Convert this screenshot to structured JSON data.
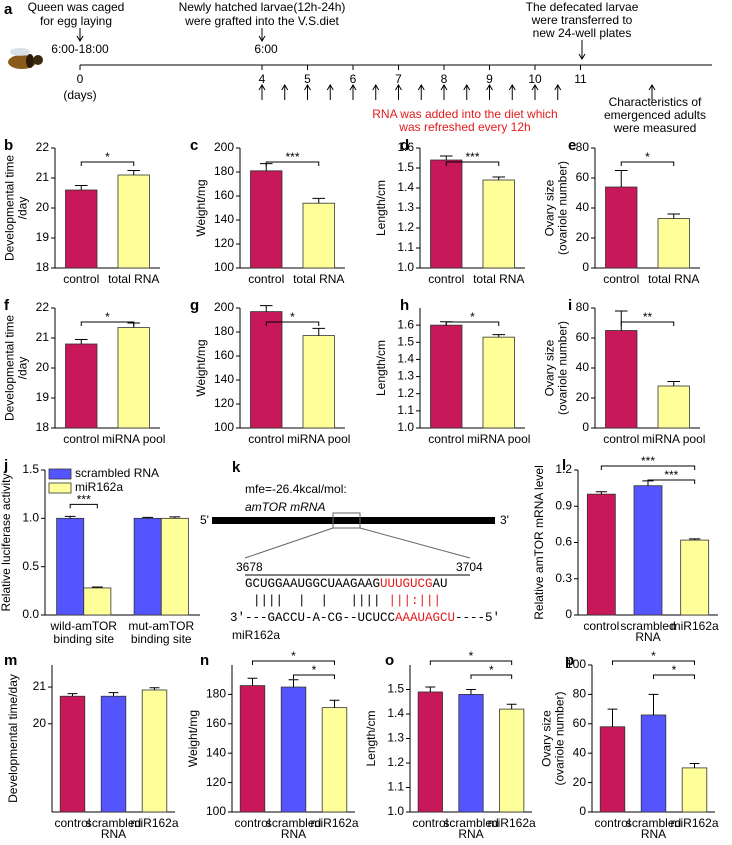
{
  "timeline": {
    "label": "a",
    "days": [
      0,
      4,
      5,
      6,
      7,
      8,
      9,
      10,
      11
    ],
    "unit": "(days)",
    "events": [
      {
        "lines": [
          "Queen was caged",
          "for egg laying"
        ],
        "time": "6:00-18:00"
      },
      {
        "lines": [
          "Newly hatched larvae(12h-24h)",
          "were grafted into the V.S.diet"
        ],
        "time": "6:00"
      },
      {
        "lines": [
          "The defecated larvae",
          "were transferred to",
          "new 24-well plates"
        ]
      }
    ],
    "rna_note": [
      "RNA was added into the diet which",
      "was refreshed every 12h"
    ],
    "measure_note": [
      "Characteristics of",
      "emergenced adults",
      "were measured"
    ]
  },
  "chart_data": [
    {
      "type": "bar",
      "label": "b",
      "ylabel": [
        "Developmental time",
        "/day"
      ],
      "categories": [
        [
          "control"
        ],
        [
          "total RNA"
        ]
      ],
      "values": [
        20.6,
        21.1
      ],
      "errors": [
        0.15,
        0.15
      ],
      "colors": [
        "#c8185a",
        "#ffff99"
      ],
      "ylim": [
        18,
        22
      ],
      "yticks": [
        18,
        19,
        20,
        21,
        22
      ],
      "annotations": [
        "*"
      ]
    },
    {
      "type": "bar",
      "label": "c",
      "ylabel": [
        "Weight/mg"
      ],
      "categories": [
        [
          "control"
        ],
        [
          "total RNA"
        ]
      ],
      "values": [
        181,
        154
      ],
      "errors": [
        6,
        4
      ],
      "colors": [
        "#c8185a",
        "#ffff99"
      ],
      "ylim": [
        100,
        200
      ],
      "yticks": [
        100,
        120,
        140,
        160,
        180,
        200
      ],
      "annotations": [
        "***"
      ]
    },
    {
      "type": "bar",
      "label": "d",
      "ylabel": [
        "Length/cm"
      ],
      "categories": [
        [
          "control"
        ],
        [
          "total RNA"
        ]
      ],
      "values": [
        1.54,
        1.44
      ],
      "errors": [
        0.02,
        0.015
      ],
      "colors": [
        "#c8185a",
        "#ffff99"
      ],
      "ylim": [
        1.0,
        1.6
      ],
      "yticks": [
        {
          "value": 1,
          "label": "1.0"
        },
        1.1,
        1.2,
        1.3,
        1.4,
        1.5,
        1.6
      ],
      "annotations": [
        "***"
      ]
    },
    {
      "type": "bar",
      "label": "e",
      "ylabel": [
        "Ovary size",
        "(ovariole number)"
      ],
      "categories": [
        [
          "control"
        ],
        [
          "total RNA"
        ]
      ],
      "values": [
        54,
        33
      ],
      "errors": [
        11,
        3
      ],
      "colors": [
        "#c8185a",
        "#ffff99"
      ],
      "ylim": [
        0,
        80
      ],
      "yticks": [
        0,
        20,
        40,
        60,
        80
      ],
      "annotations": [
        "*"
      ]
    },
    {
      "type": "bar",
      "label": "f",
      "ylabel": [
        "Developmental time",
        "/day"
      ],
      "categories": [
        [
          "control"
        ],
        [
          "miRNA pool"
        ]
      ],
      "values": [
        20.8,
        21.35
      ],
      "errors": [
        0.15,
        0.15
      ],
      "colors": [
        "#c8185a",
        "#ffff99"
      ],
      "ylim": [
        18,
        22
      ],
      "yticks": [
        18,
        19,
        20,
        21,
        22
      ],
      "annotations": [
        "*"
      ]
    },
    {
      "type": "bar",
      "label": "g",
      "ylabel": [
        "Weight/mg"
      ],
      "categories": [
        [
          "control"
        ],
        [
          "miRNA pool"
        ]
      ],
      "values": [
        197,
        177
      ],
      "errors": [
        5,
        6
      ],
      "colors": [
        "#c8185a",
        "#ffff99"
      ],
      "ylim": [
        100,
        200
      ],
      "yticks": [
        100,
        120,
        140,
        160,
        180,
        200
      ],
      "annotations": [
        "*"
      ]
    },
    {
      "type": "bar",
      "label": "h",
      "ylabel": [
        "Length/cm"
      ],
      "categories": [
        [
          "control"
        ],
        [
          "miRNA pool"
        ]
      ],
      "values": [
        1.6,
        1.53
      ],
      "errors": [
        0.02,
        0.015
      ],
      "colors": [
        "#c8185a",
        "#ffff99"
      ],
      "ylim": [
        1.0,
        1.7
      ],
      "yticks": [
        {
          "value": 1,
          "label": "1.0"
        },
        1.1,
        1.2,
        1.3,
        1.4,
        1.5,
        1.6
      ],
      "annotations": [
        "*"
      ]
    },
    {
      "type": "bar",
      "label": "i",
      "ylabel": [
        "Ovary size",
        "(ovariole number)"
      ],
      "categories": [
        [
          "control"
        ],
        [
          "miRNA pool"
        ]
      ],
      "values": [
        65,
        28
      ],
      "errors": [
        13,
        3
      ],
      "colors": [
        "#c8185a",
        "#ffff99"
      ],
      "ylim": [
        0,
        80
      ],
      "yticks": [
        0,
        20,
        40,
        60,
        80
      ],
      "annotations": [
        "**"
      ]
    },
    {
      "type": "bar",
      "label": "j",
      "ylabel": [
        "Relative luciferase activity"
      ],
      "categories": [
        [
          "wild-amTOR",
          "binding site"
        ],
        [
          "mut-amTOR",
          "binding site"
        ]
      ],
      "series": [
        {
          "name": "scrambled RNA",
          "color": "#5555ff",
          "values": [
            1.0,
            1.0
          ],
          "errors": [
            0.02,
            0.01
          ]
        },
        {
          "name": "miR162a",
          "color": "#ffff99",
          "values": [
            0.28,
            1.0
          ],
          "errors": [
            0.01,
            0.015
          ]
        }
      ],
      "ylim": [
        0,
        1.5
      ],
      "yticks": [
        {
          "value": 0,
          "label": "0.0"
        },
        0.5,
        {
          "value": 1,
          "label": "1.0"
        },
        1.5
      ],
      "legend": "upper left",
      "annotations": [
        "***"
      ]
    },
    {
      "type": "bar",
      "label": "l",
      "ylabel": [
        "Relative amTOR mRNA level"
      ],
      "categories": [
        [
          "control"
        ],
        [
          "scrambled",
          "RNA"
        ],
        [
          "miR162a"
        ]
      ],
      "values": [
        1.0,
        1.07,
        0.62
      ],
      "errors": [
        0.02,
        0.04,
        0.01
      ],
      "colors": [
        "#c8185a",
        "#5555ff",
        "#ffff99"
      ],
      "ylim": [
        0,
        1.2
      ],
      "yticks": [
        0,
        0.3,
        0.6,
        0.9,
        1.2
      ],
      "annotations": [
        "***",
        "***"
      ]
    },
    {
      "type": "bar",
      "label": "m",
      "ylabel": [
        "Developmental time/day"
      ],
      "categories": [
        [
          "control"
        ],
        [
          "scrambled",
          "RNA"
        ],
        [
          "miR162a"
        ]
      ],
      "values": [
        20.75,
        20.75,
        20.92
      ],
      "errors": [
        0.07,
        0.1,
        0.06
      ],
      "colors": [
        "#c8185a",
        "#5555ff",
        "#ffff99"
      ],
      "ylim": [
        17.6,
        21.6
      ],
      "yticks": [
        20,
        21
      ],
      "annotations": []
    },
    {
      "type": "bar",
      "label": "n",
      "ylabel": [
        "Weight/mg"
      ],
      "categories": [
        [
          "control"
        ],
        [
          "scrambled",
          "RNA"
        ],
        [
          "miR162a"
        ]
      ],
      "values": [
        186,
        185,
        171
      ],
      "errors": [
        5,
        5,
        5
      ],
      "colors": [
        "#c8185a",
        "#5555ff",
        "#ffff99"
      ],
      "ylim": [
        100,
        200
      ],
      "yticks": [
        100,
        120,
        140,
        160,
        180
      ],
      "annotations": [
        "*",
        "*"
      ]
    },
    {
      "type": "bar",
      "label": "o",
      "ylabel": [
        "Length/cm"
      ],
      "categories": [
        [
          "control"
        ],
        [
          "scrambled",
          "RNA"
        ],
        [
          "miR162a"
        ]
      ],
      "values": [
        1.49,
        1.48,
        1.42
      ],
      "errors": [
        0.02,
        0.02,
        0.02
      ],
      "colors": [
        "#c8185a",
        "#5555ff",
        "#ffff99"
      ],
      "ylim": [
        1.0,
        1.6
      ],
      "yticks": [
        {
          "value": 1,
          "label": "1.0"
        },
        1.1,
        1.2,
        1.3,
        1.4,
        1.5
      ],
      "annotations": [
        "*",
        "*"
      ]
    },
    {
      "type": "bar",
      "label": "p",
      "ylabel": [
        "Ovary size",
        "(ovariole number)"
      ],
      "categories": [
        [
          "control"
        ],
        [
          "scrambled",
          "RNA"
        ],
        [
          "miR162a"
        ]
      ],
      "values": [
        58,
        66,
        30
      ],
      "errors": [
        12,
        14,
        3
      ],
      "colors": [
        "#c8185a",
        "#5555ff",
        "#ffff99"
      ],
      "ylim": [
        0,
        100
      ],
      "yticks": [
        0,
        20,
        40,
        60,
        80,
        100
      ],
      "annotations": [
        "*",
        "*"
      ]
    }
  ],
  "sequence": {
    "label": "k",
    "mfe": "mfe=-26.4kcal/mol:",
    "mrna": "amTOR mRNA",
    "five": "5'",
    "three": "3'",
    "start": "3678",
    "end": "3704",
    "target": [
      "GCUGGAAUGGCUAAGAAG",
      "UUUGUCG",
      "AU"
    ],
    "pairs": [
      "||||  |  |   ||||",
      "|||:|||"
    ],
    "mirna_seq": [
      "3'---GACCU-A-CG--UCUCC",
      "AAAUAGCU",
      "----5'"
    ],
    "mirna": "miR162a"
  }
}
